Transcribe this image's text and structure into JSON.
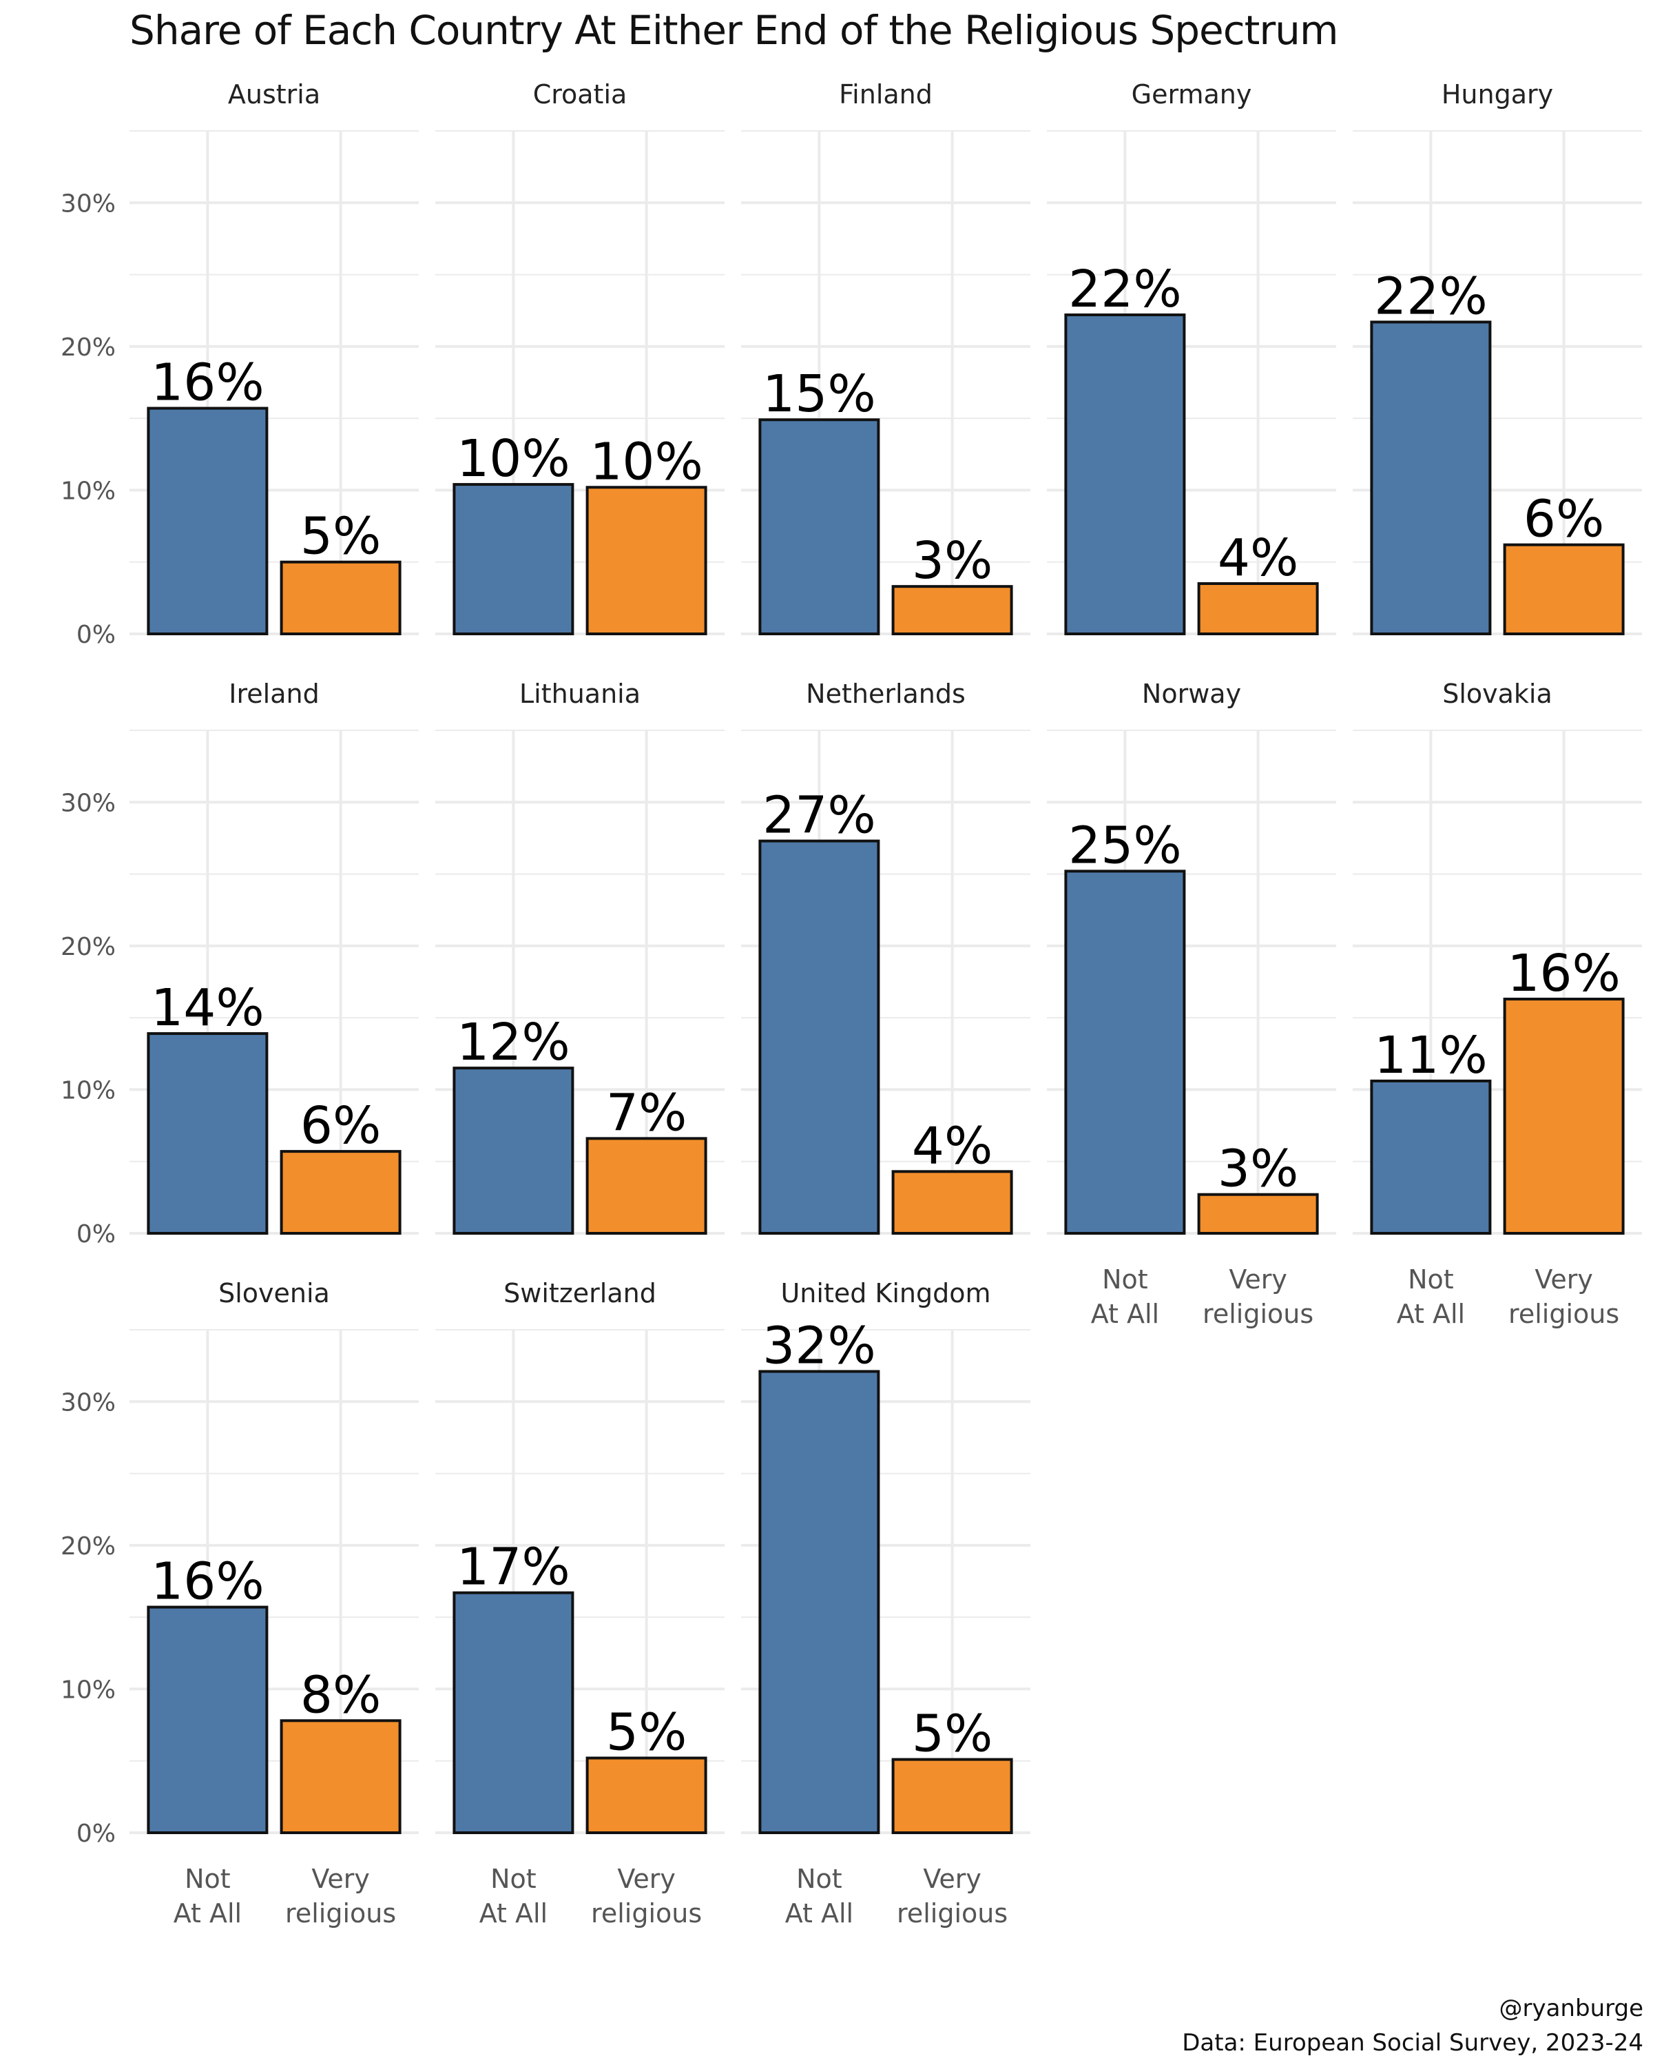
{
  "title": "Share of Each Country At Either End of the Religious Spectrum",
  "caption": {
    "handle": "@ryanburge",
    "source": "Data: European Social Survey, 2023-24"
  },
  "colors": {
    "not_at_all": "#4E79A7",
    "very_religious": "#F28E2B",
    "grid": "#EBEBEB",
    "bar_outline": "#111111"
  },
  "chart_data": {
    "type": "bar",
    "title": "Share of Each Country At Either End of the Religious Spectrum",
    "facet_layout": "5 columns, 3 rows",
    "categories": [
      "Not\nAt All",
      "Very\nreligious"
    ],
    "ylim": [
      0,
      35
    ],
    "yticks": [
      "0%",
      "10%",
      "20%",
      "30%"
    ],
    "ytick_values": [
      0,
      10,
      20,
      30
    ],
    "grid": true,
    "panels": [
      {
        "country": "Austria",
        "values": [
          15.7,
          5.0
        ],
        "labels": [
          "16%",
          "5%"
        ]
      },
      {
        "country": "Croatia",
        "values": [
          10.4,
          10.2
        ],
        "labels": [
          "10%",
          "10%"
        ]
      },
      {
        "country": "Finland",
        "values": [
          14.9,
          3.3
        ],
        "labels": [
          "15%",
          "3%"
        ]
      },
      {
        "country": "Germany",
        "values": [
          22.2,
          3.5
        ],
        "labels": [
          "22%",
          "4%"
        ]
      },
      {
        "country": "Hungary",
        "values": [
          21.7,
          6.2
        ],
        "labels": [
          "22%",
          "6%"
        ]
      },
      {
        "country": "Ireland",
        "values": [
          13.9,
          5.7
        ],
        "labels": [
          "14%",
          "6%"
        ]
      },
      {
        "country": "Lithuania",
        "values": [
          11.5,
          6.6
        ],
        "labels": [
          "12%",
          "7%"
        ]
      },
      {
        "country": "Netherlands",
        "values": [
          27.3,
          4.3
        ],
        "labels": [
          "27%",
          "4%"
        ]
      },
      {
        "country": "Norway",
        "values": [
          25.2,
          2.7
        ],
        "labels": [
          "25%",
          "3%"
        ]
      },
      {
        "country": "Slovakia",
        "values": [
          10.6,
          16.3
        ],
        "labels": [
          "11%",
          "16%"
        ]
      },
      {
        "country": "Slovenia",
        "values": [
          15.7,
          7.8
        ],
        "labels": [
          "16%",
          "8%"
        ]
      },
      {
        "country": "Switzerland",
        "values": [
          16.7,
          5.2
        ],
        "labels": [
          "17%",
          "5%"
        ]
      },
      {
        "country": "United Kingdom",
        "values": [
          32.1,
          5.1
        ],
        "labels": [
          "32%",
          "5%"
        ]
      }
    ]
  }
}
